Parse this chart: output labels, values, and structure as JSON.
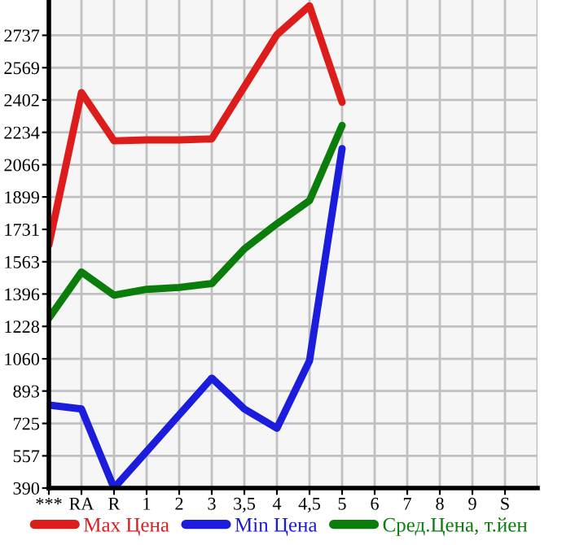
{
  "chart_data": {
    "type": "line",
    "categories": [
      "***",
      "RA",
      "R",
      "1",
      "2",
      "3",
      "3,5",
      "4",
      "4,5",
      "5",
      "6",
      "7",
      "8",
      "9",
      "S"
    ],
    "series": [
      {
        "name": "Max Цена",
        "color": "#dd1c1c",
        "values": [
          1650,
          2440,
          2190,
          2195,
          2195,
          2200,
          2470,
          2740,
          2890,
          2390,
          null,
          null,
          null,
          null,
          null
        ]
      },
      {
        "name": "Min Цена",
        "color": "#1c1cdd",
        "values": [
          820,
          800,
          390,
          580,
          770,
          960,
          800,
          700,
          1050,
          2150,
          null,
          null,
          null,
          null,
          null
        ]
      },
      {
        "name": "Сред.Цена, т.йен",
        "color": "#0a7d0a",
        "values": [
          1270,
          1510,
          1390,
          1420,
          1430,
          1450,
          1630,
          1760,
          1880,
          2270,
          null,
          null,
          null,
          null,
          null
        ]
      }
    ],
    "ylim": [
      390,
      2920
    ],
    "yticks": [
      390,
      557,
      725,
      893,
      1060,
      1228,
      1396,
      1563,
      1731,
      1899,
      2066,
      2234,
      2402,
      2569,
      2737
    ],
    "grid": true,
    "legend": "bottom",
    "marker": "none",
    "line_style": "solid"
  }
}
